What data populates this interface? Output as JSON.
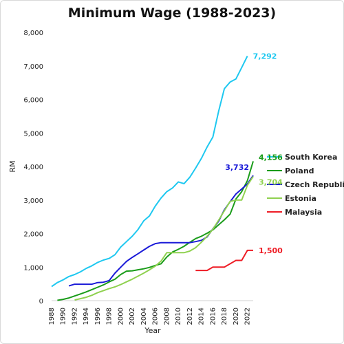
{
  "chart_data": {
    "type": "line",
    "title": "Minimum Wage (1988-2023)",
    "xlabel": "Year",
    "ylabel": "RM",
    "xlim": [
      1988,
      2023
    ],
    "ylim": [
      0,
      8000
    ],
    "x_ticks": [
      1988,
      1990,
      1992,
      1994,
      1996,
      1998,
      2000,
      2002,
      2004,
      2006,
      2008,
      2010,
      2012,
      2014,
      2016,
      2018,
      2020,
      2022
    ],
    "y_ticks": [
      0,
      1000,
      2000,
      3000,
      4000,
      5000,
      6000,
      7000,
      8000
    ],
    "y_tick_labels": [
      "0",
      "1,000",
      "2,000",
      "3,000",
      "4,000",
      "5,000",
      "6,000",
      "7,000",
      "8,000"
    ],
    "grid": false,
    "legend_position": "right",
    "series": [
      {
        "name": "South Korea",
        "color": "#1ec8f0",
        "end_label": "7,292",
        "points": [
          [
            1988,
            420
          ],
          [
            1989,
            540
          ],
          [
            1990,
            620
          ],
          [
            1991,
            720
          ],
          [
            1992,
            780
          ],
          [
            1993,
            860
          ],
          [
            1994,
            960
          ],
          [
            1995,
            1040
          ],
          [
            1996,
            1140
          ],
          [
            1997,
            1210
          ],
          [
            1998,
            1260
          ],
          [
            1999,
            1370
          ],
          [
            2000,
            1600
          ],
          [
            2001,
            1760
          ],
          [
            2002,
            1920
          ],
          [
            2003,
            2120
          ],
          [
            2004,
            2380
          ],
          [
            2005,
            2530
          ],
          [
            2006,
            2820
          ],
          [
            2007,
            3060
          ],
          [
            2008,
            3250
          ],
          [
            2009,
            3360
          ],
          [
            2010,
            3540
          ],
          [
            2011,
            3490
          ],
          [
            2012,
            3680
          ],
          [
            2013,
            3950
          ],
          [
            2014,
            4240
          ],
          [
            2015,
            4580
          ],
          [
            2016,
            4880
          ],
          [
            2017,
            5650
          ],
          [
            2018,
            6320
          ],
          [
            2019,
            6520
          ],
          [
            2020,
            6610
          ],
          [
            2021,
            6950
          ],
          [
            2022,
            7292
          ]
        ]
      },
      {
        "name": "Poland",
        "color": "#1a9c1a",
        "end_label": "4,156",
        "points": [
          [
            1989,
            10
          ],
          [
            1990,
            40
          ],
          [
            1991,
            80
          ],
          [
            1992,
            140
          ],
          [
            1993,
            200
          ],
          [
            1994,
            260
          ],
          [
            1995,
            330
          ],
          [
            1996,
            400
          ],
          [
            1997,
            470
          ],
          [
            1998,
            560
          ],
          [
            1999,
            640
          ],
          [
            2000,
            780
          ],
          [
            2001,
            880
          ],
          [
            2002,
            890
          ],
          [
            2003,
            920
          ],
          [
            2004,
            950
          ],
          [
            2005,
            990
          ],
          [
            2006,
            1050
          ],
          [
            2007,
            1100
          ],
          [
            2008,
            1300
          ],
          [
            2009,
            1450
          ],
          [
            2010,
            1530
          ],
          [
            2011,
            1620
          ],
          [
            2012,
            1740
          ],
          [
            2013,
            1850
          ],
          [
            2014,
            1920
          ],
          [
            2015,
            2010
          ],
          [
            2016,
            2110
          ],
          [
            2017,
            2260
          ],
          [
            2018,
            2410
          ],
          [
            2019,
            2580
          ],
          [
            2020,
            3030
          ],
          [
            2021,
            3250
          ],
          [
            2022,
            3580
          ],
          [
            2023,
            4156
          ]
        ]
      },
      {
        "name": "Czech Republic",
        "color": "#1a1ad8",
        "end_label": "3,732",
        "points": [
          [
            1991,
            440
          ],
          [
            1992,
            490
          ],
          [
            1993,
            490
          ],
          [
            1994,
            490
          ],
          [
            1995,
            490
          ],
          [
            1996,
            540
          ],
          [
            1997,
            550
          ],
          [
            1998,
            600
          ],
          [
            1999,
            820
          ],
          [
            2000,
            1000
          ],
          [
            2001,
            1170
          ],
          [
            2002,
            1290
          ],
          [
            2003,
            1400
          ],
          [
            2004,
            1510
          ],
          [
            2005,
            1620
          ],
          [
            2006,
            1700
          ],
          [
            2007,
            1730
          ],
          [
            2008,
            1730
          ],
          [
            2009,
            1730
          ],
          [
            2010,
            1730
          ],
          [
            2011,
            1730
          ],
          [
            2012,
            1730
          ],
          [
            2013,
            1760
          ],
          [
            2014,
            1800
          ],
          [
            2015,
            1900
          ],
          [
            2016,
            2140
          ],
          [
            2017,
            2370
          ],
          [
            2018,
            2710
          ],
          [
            2019,
            2950
          ],
          [
            2020,
            3180
          ],
          [
            2021,
            3330
          ],
          [
            2022,
            3480
          ],
          [
            2023,
            3732
          ]
        ]
      },
      {
        "name": "Estonia",
        "color": "#8fd14f",
        "end_label": "3,704",
        "points": [
          [
            1992,
            20
          ],
          [
            1993,
            60
          ],
          [
            1994,
            100
          ],
          [
            1995,
            160
          ],
          [
            1996,
            240
          ],
          [
            1997,
            300
          ],
          [
            1998,
            360
          ],
          [
            1999,
            410
          ],
          [
            2000,
            480
          ],
          [
            2001,
            560
          ],
          [
            2002,
            640
          ],
          [
            2003,
            730
          ],
          [
            2004,
            820
          ],
          [
            2005,
            920
          ],
          [
            2006,
            1030
          ],
          [
            2007,
            1180
          ],
          [
            2008,
            1430
          ],
          [
            2009,
            1430
          ],
          [
            2010,
            1430
          ],
          [
            2011,
            1430
          ],
          [
            2012,
            1480
          ],
          [
            2013,
            1580
          ],
          [
            2014,
            1740
          ],
          [
            2015,
            1920
          ],
          [
            2016,
            2130
          ],
          [
            2017,
            2400
          ],
          [
            2018,
            2680
          ],
          [
            2019,
            2960
          ],
          [
            2020,
            3000
          ],
          [
            2021,
            3000
          ],
          [
            2022,
            3440
          ],
          [
            2023,
            3704
          ]
        ]
      },
      {
        "name": "Malaysia",
        "color": "#ee1c25",
        "end_label": "1,500",
        "points": [
          [
            2013,
            900
          ],
          [
            2014,
            900
          ],
          [
            2015,
            900
          ],
          [
            2016,
            1000
          ],
          [
            2017,
            1000
          ],
          [
            2018,
            1000
          ],
          [
            2019,
            1100
          ],
          [
            2020,
            1200
          ],
          [
            2021,
            1200
          ],
          [
            2022,
            1500
          ],
          [
            2023,
            1500
          ]
        ]
      }
    ]
  }
}
